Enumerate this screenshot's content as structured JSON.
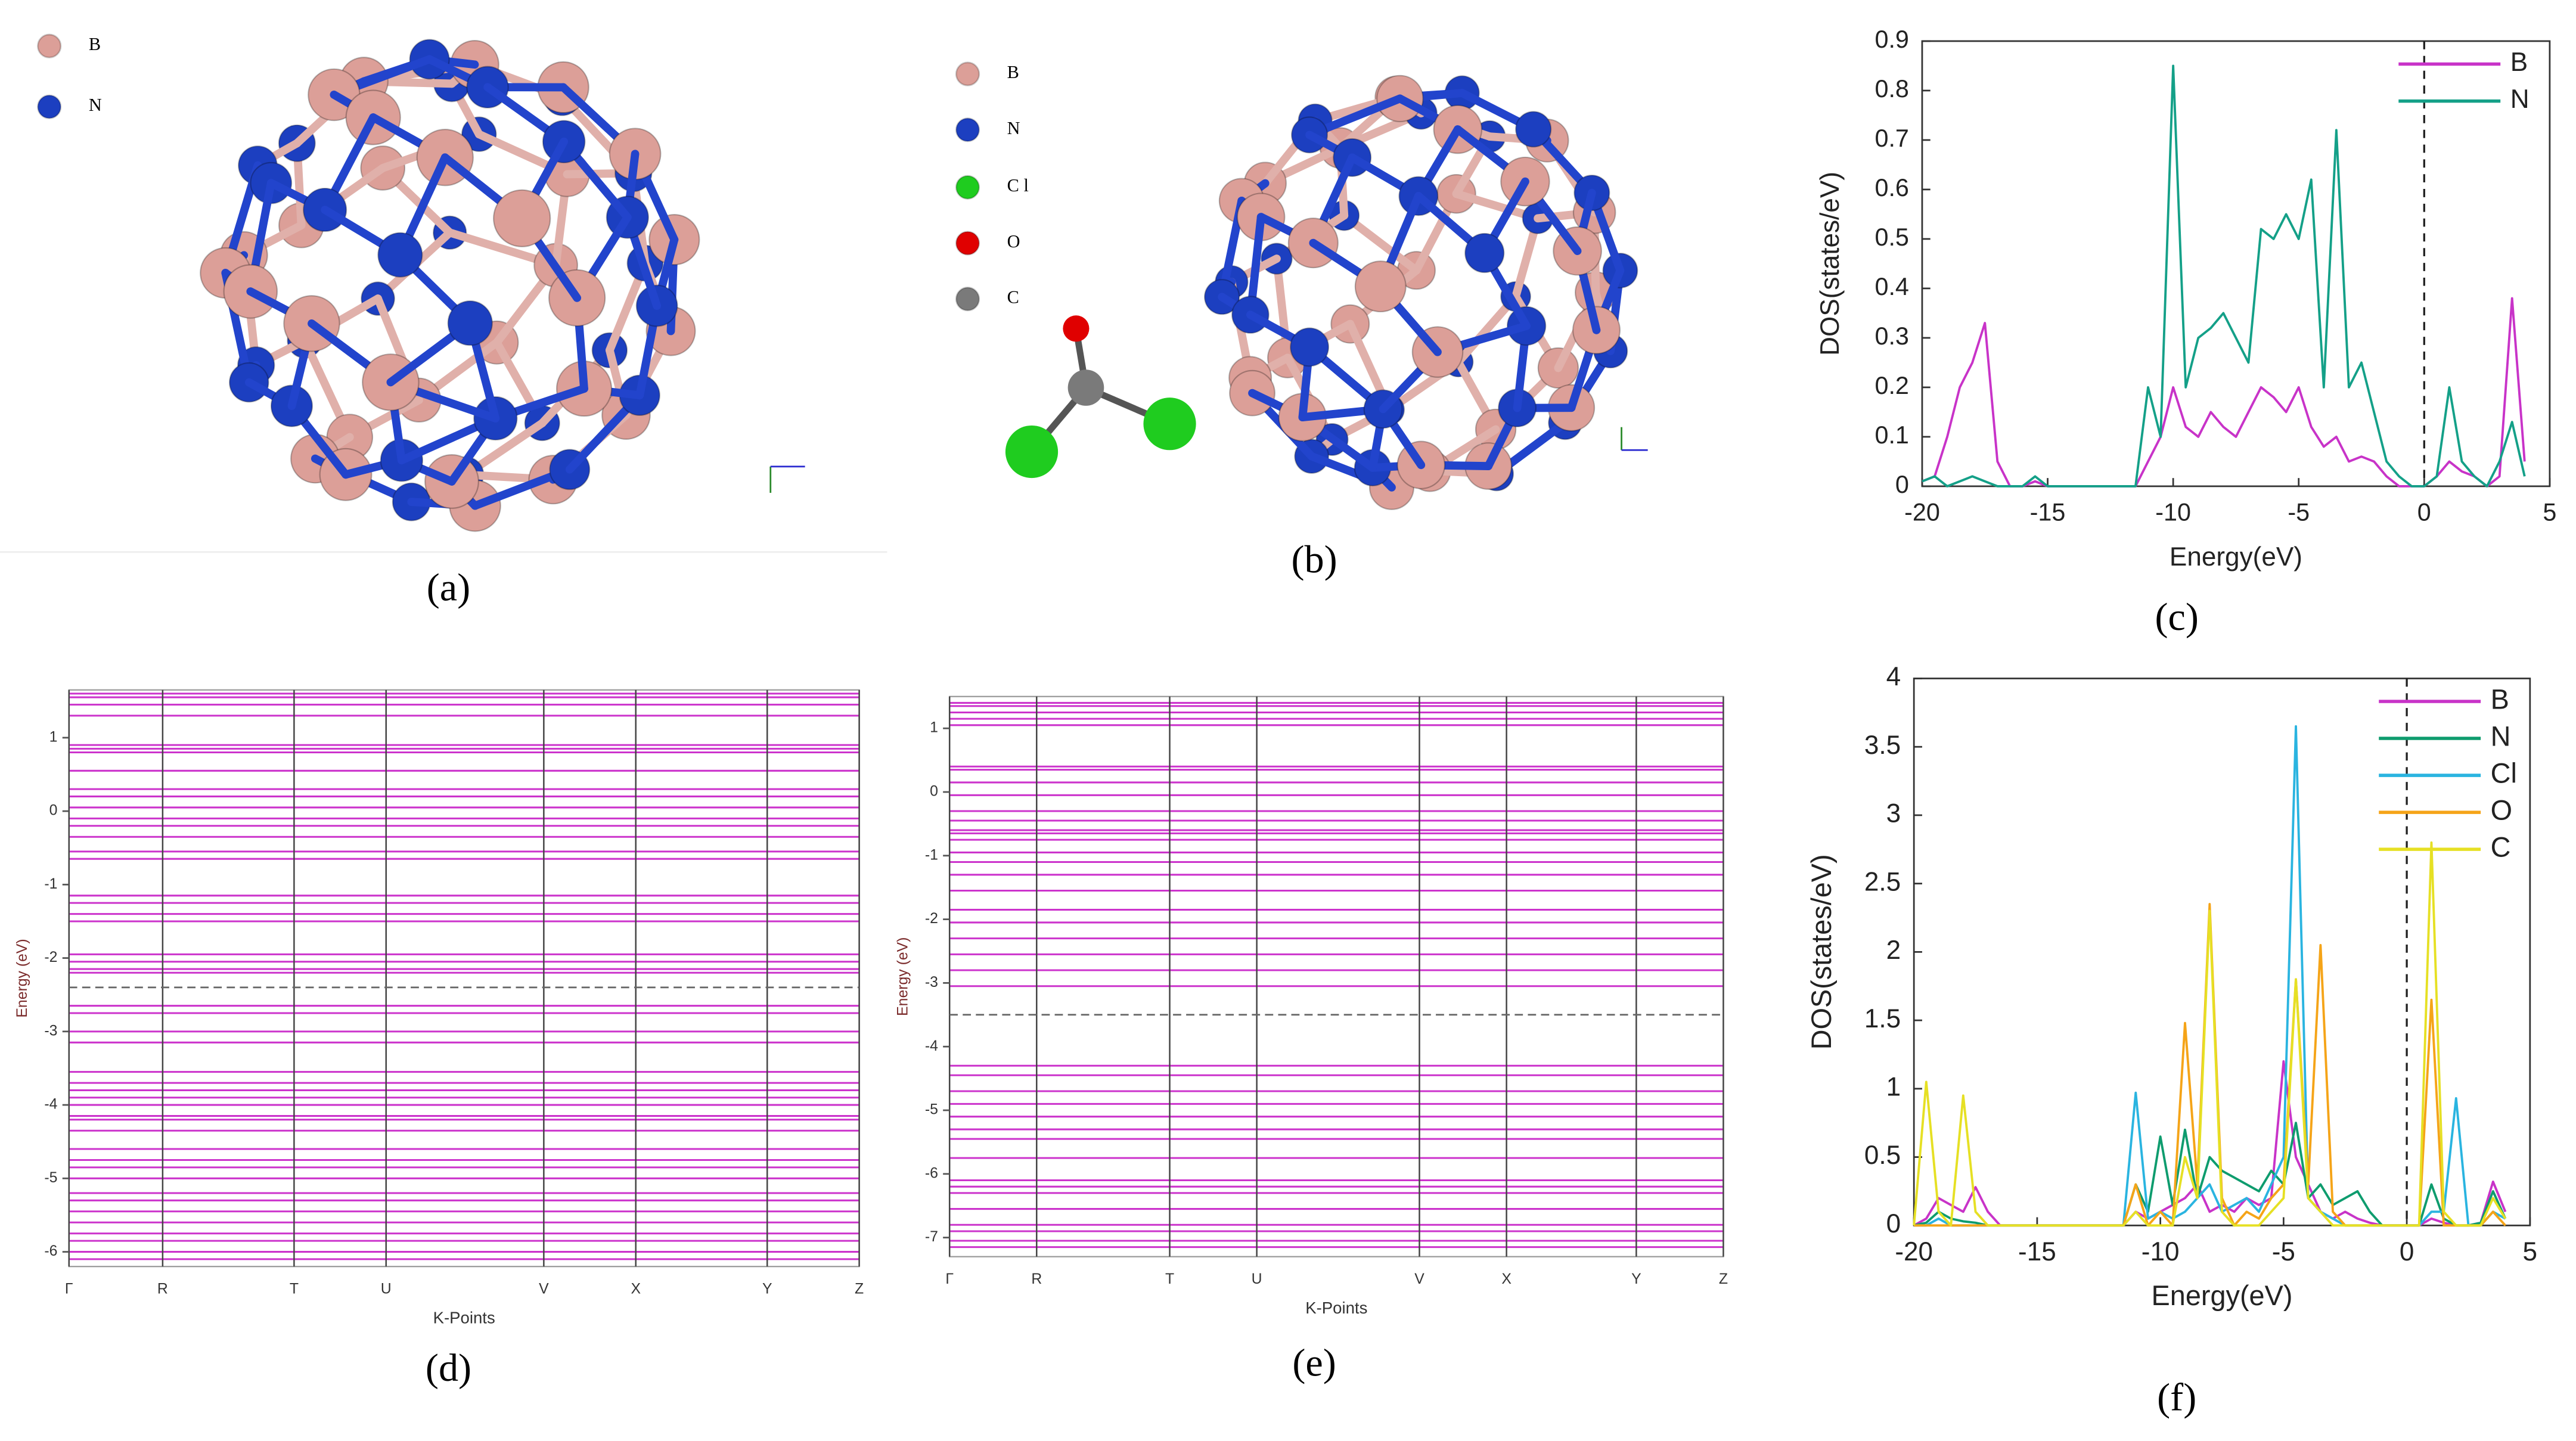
{
  "figure": {
    "panel_labels": [
      "(a)",
      "(b)",
      "(c)",
      "(d)",
      "(e)",
      "(f)"
    ],
    "structures": [
      {
        "atoms": [
          {
            "name": "B",
            "color": "#dc9f98"
          },
          {
            "name": "N",
            "color": "#1c3fc0"
          }
        ]
      },
      {
        "atoms": [
          {
            "name": "B",
            "color": "#dc9f98"
          },
          {
            "name": "N",
            "color": "#1c3fc0"
          },
          {
            "name": "C l",
            "color": "#1fcc1f"
          },
          {
            "name": "O",
            "color": "#e00000"
          },
          {
            "name": "C",
            "color": "#7a7a7a"
          }
        ]
      }
    ]
  },
  "chart_data": [
    {
      "type": "line",
      "xlabel": "Energy(eV)",
      "ylabel": "DOS(states/eV)",
      "xlim": [
        -20,
        5
      ],
      "ylim": [
        0,
        0.9
      ],
      "xticks": [
        -20,
        -15,
        -10,
        -5,
        0,
        5
      ],
      "yticks": [
        0,
        0.1,
        0.2,
        0.3,
        0.4,
        0.5,
        0.6,
        0.7,
        0.8,
        0.9
      ],
      "fermi": 0,
      "legend": "upper right",
      "x": [
        -20,
        -19.5,
        -19,
        -18.5,
        -18,
        -17.5,
        -17,
        -16.5,
        -16,
        -15.5,
        -15,
        -14.5,
        -14,
        -13.5,
        -13,
        -12.5,
        -12,
        -11.5,
        -11,
        -10.5,
        -10,
        -9.5,
        -9,
        -8.5,
        -8,
        -7.5,
        -7,
        -6.5,
        -6,
        -5.5,
        -5,
        -4.5,
        -4,
        -3.5,
        -3,
        -2.5,
        -2,
        -1.5,
        -1,
        -0.5,
        0,
        0.5,
        1,
        1.5,
        2,
        2.5,
        3,
        3.5,
        4
      ],
      "series": [
        {
          "name": "B",
          "color": "#c833c8",
          "values": [
            0.01,
            0.02,
            0.1,
            0.2,
            0.25,
            0.33,
            0.05,
            0,
            0,
            0.01,
            0,
            0,
            0,
            0,
            0,
            0,
            0,
            0,
            0.05,
            0.1,
            0.2,
            0.12,
            0.1,
            0.15,
            0.12,
            0.1,
            0.15,
            0.2,
            0.18,
            0.15,
            0.2,
            0.12,
            0.08,
            0.1,
            0.05,
            0.06,
            0.05,
            0.02,
            0,
            0,
            0,
            0.02,
            0.05,
            0.03,
            0.02,
            0,
            0.02,
            0.38,
            0.05
          ]
        },
        {
          "name": "N",
          "color": "#14a088",
          "values": [
            0.01,
            0.02,
            0,
            0.01,
            0.02,
            0.01,
            0,
            0,
            0,
            0.02,
            0,
            0,
            0,
            0,
            0,
            0,
            0,
            0,
            0.2,
            0.1,
            0.85,
            0.2,
            0.3,
            0.32,
            0.35,
            0.3,
            0.25,
            0.52,
            0.5,
            0.55,
            0.5,
            0.62,
            0.2,
            0.72,
            0.2,
            0.25,
            0.15,
            0.05,
            0.02,
            0,
            0,
            0.02,
            0.2,
            0.05,
            0.02,
            0,
            0.05,
            0.13,
            0.02
          ]
        }
      ]
    },
    {
      "type": "band",
      "xlabel": "K-Points",
      "ylabel": "Energy (eV)",
      "color": "#cc33cc",
      "ylim": [
        -6.2,
        1.65
      ],
      "yticks": [
        -6,
        -5,
        -4,
        -3,
        -2,
        -1,
        0,
        1
      ],
      "xlim": [
        0,
        4.81
      ],
      "xticks": [
        {
          "value": 0,
          "label": "Γ"
        },
        {
          "value": 0.57,
          "label": "R"
        },
        {
          "value": 1.37,
          "label": "T"
        },
        {
          "value": 1.93,
          "label": "U"
        },
        {
          "value": 2.89,
          "label": "V"
        },
        {
          "value": 3.45,
          "label": "X"
        },
        {
          "value": 4.25,
          "label": "Y"
        },
        {
          "value": 4.81,
          "label": "Z"
        }
      ],
      "fermi": -2.4,
      "bands": [
        1.6,
        1.55,
        1.45,
        1.3,
        0.9,
        0.85,
        0.8,
        0.55,
        0.3,
        0.2,
        0.05,
        -0.1,
        -0.2,
        -0.35,
        -0.55,
        -0.65,
        -1.15,
        -1.25,
        -1.4,
        -1.5,
        -1.95,
        -2.05,
        -2.15,
        -2.2,
        -2.65,
        -2.75,
        -3.0,
        -3.15,
        -3.55,
        -3.7,
        -3.8,
        -3.9,
        -4.0,
        -4.15,
        -4.2,
        -4.35,
        -4.6,
        -4.75,
        -4.85,
        -5.0,
        -5.2,
        -5.3,
        -5.45,
        -5.6,
        -5.75,
        -5.85,
        -6.0,
        -6.1
      ]
    },
    {
      "type": "band",
      "xlabel": "K-Points",
      "ylabel": "Energy (eV)",
      "color": "#cc33cc",
      "ylim": [
        -7.3,
        1.5
      ],
      "yticks": [
        -7,
        -6,
        -5,
        -4,
        -3,
        -2,
        -1,
        0,
        1
      ],
      "xlim": [
        0,
        4.71
      ],
      "xticks": [
        {
          "value": 0,
          "label": "Γ"
        },
        {
          "value": 0.53,
          "label": "R"
        },
        {
          "value": 1.34,
          "label": "T"
        },
        {
          "value": 1.87,
          "label": "U"
        },
        {
          "value": 2.86,
          "label": "V"
        },
        {
          "value": 3.39,
          "label": "X"
        },
        {
          "value": 4.18,
          "label": "Y"
        },
        {
          "value": 4.71,
          "label": "Z"
        }
      ],
      "fermi": -3.5,
      "bands": [
        1.4,
        1.35,
        1.25,
        1.15,
        1.05,
        0.4,
        0.35,
        0.15,
        -0.05,
        -0.3,
        -0.45,
        -0.6,
        -0.65,
        -0.75,
        -0.95,
        -1.1,
        -1.3,
        -1.55,
        -1.85,
        -2.05,
        -2.3,
        -2.55,
        -2.8,
        -3.05,
        -4.3,
        -4.45,
        -4.7,
        -4.9,
        -5.1,
        -5.3,
        -5.45,
        -5.75,
        -6.1,
        -6.2,
        -6.3,
        -6.55,
        -6.8,
        -6.9,
        -7.05,
        -7.15
      ]
    },
    {
      "type": "line",
      "xlabel": "Energy(eV)",
      "ylabel": "DOS(states/eV)",
      "xlim": [
        -20,
        5
      ],
      "ylim": [
        0,
        4
      ],
      "xticks": [
        -20,
        -15,
        -10,
        -5,
        0,
        5
      ],
      "yticks": [
        0,
        0.5,
        1,
        1.5,
        2,
        2.5,
        3,
        3.5,
        4
      ],
      "fermi": 0,
      "legend": "upper right",
      "x": [
        -20,
        -19.5,
        -19,
        -18.5,
        -18,
        -17.5,
        -17,
        -16.5,
        -16,
        -15.5,
        -15,
        -14.5,
        -14,
        -13.5,
        -13,
        -12.5,
        -12,
        -11.5,
        -11,
        -10.5,
        -10,
        -9.5,
        -9,
        -8.5,
        -8,
        -7.5,
        -7,
        -6.5,
        -6,
        -5.5,
        -5,
        -4.5,
        -4,
        -3.5,
        -3,
        -2.5,
        -2,
        -1.5,
        -1,
        -0.5,
        0,
        0.5,
        1,
        1.5,
        2,
        2.5,
        3,
        3.5,
        4
      ],
      "series": [
        {
          "name": "B",
          "color": "#c833c8",
          "values": [
            0,
            0.05,
            0.2,
            0.15,
            0.1,
            0.28,
            0.1,
            0,
            0,
            0,
            0,
            0,
            0,
            0,
            0,
            0,
            0,
            0,
            0.1,
            0.05,
            0.1,
            0.15,
            0.2,
            0.3,
            0.1,
            0.15,
            0.1,
            0.2,
            0.15,
            0.2,
            1.2,
            0.5,
            0.3,
            0.1,
            0.05,
            0.1,
            0.05,
            0.02,
            0,
            0,
            0,
            0,
            0.05,
            0.02,
            0,
            0,
            0.02,
            0.32,
            0.1
          ]
        },
        {
          "name": "N",
          "color": "#0e9c6e",
          "values": [
            0,
            0.02,
            0.1,
            0.05,
            0.03,
            0.02,
            0,
            0,
            0,
            0,
            0,
            0,
            0,
            0,
            0,
            0,
            0,
            0,
            0.3,
            0.1,
            0.65,
            0.15,
            0.7,
            0.2,
            0.5,
            0.4,
            0.35,
            0.3,
            0.25,
            0.4,
            0.3,
            0.75,
            0.2,
            0.3,
            0.15,
            0.2,
            0.25,
            0.1,
            0,
            0,
            0,
            0,
            0.3,
            0.05,
            0,
            0,
            0.02,
            0.25,
            0.05
          ]
        },
        {
          "name": "Cl",
          "color": "#2ab4e0",
          "values": [
            0,
            0,
            0.05,
            0,
            0,
            0,
            0,
            0,
            0,
            0,
            0,
            0,
            0,
            0,
            0,
            0,
            0,
            0,
            0.97,
            0.05,
            0.1,
            0.05,
            0.1,
            0.2,
            0.3,
            0.1,
            0.15,
            0.2,
            0.1,
            0.3,
            0.5,
            3.65,
            0.2,
            0.1,
            0.05,
            0,
            0,
            0,
            0,
            0,
            0,
            0,
            0.1,
            0.1,
            0.93,
            0,
            0,
            0.1,
            0.05
          ]
        },
        {
          "name": "O",
          "color": "#f5a418",
          "values": [
            0,
            0,
            0,
            0,
            0,
            0,
            0,
            0,
            0,
            0,
            0,
            0,
            0,
            0,
            0,
            0,
            0,
            0,
            0.3,
            0,
            0.1,
            0,
            1.48,
            0.3,
            2.35,
            0.2,
            0,
            0.1,
            0.05,
            0.2,
            0.3,
            1.8,
            0.3,
            2.05,
            0.1,
            0,
            0,
            0,
            0,
            0,
            0,
            0,
            1.65,
            0,
            0,
            0,
            0,
            0.1,
            0
          ]
        },
        {
          "name": "C",
          "color": "#e6e024",
          "values": [
            0,
            1.05,
            0.1,
            0,
            0.95,
            0.1,
            0,
            0,
            0,
            0,
            0,
            0,
            0,
            0,
            0,
            0,
            0,
            0,
            0.1,
            0,
            0,
            0,
            0.5,
            0.2,
            2.3,
            0.1,
            0,
            0,
            0,
            0.1,
            0.2,
            1.8,
            0.2,
            0.1,
            0,
            0,
            0,
            0,
            0,
            0,
            0,
            0,
            2.8,
            0.1,
            0,
            0,
            0,
            0.2,
            0.05
          ]
        }
      ]
    }
  ]
}
